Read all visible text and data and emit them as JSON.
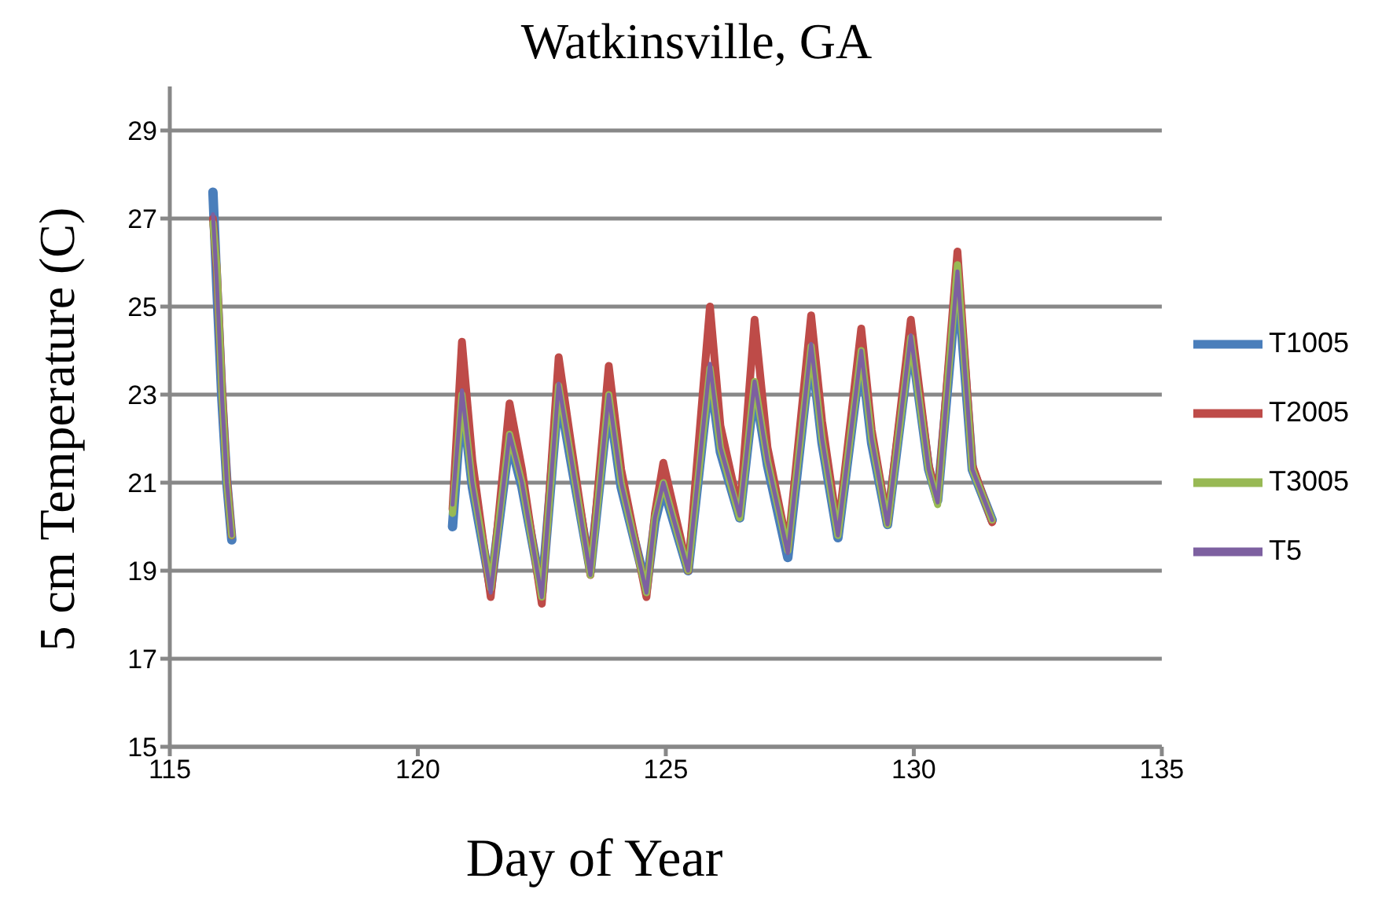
{
  "chart_data": {
    "type": "line",
    "title": "Watkinsville, GA",
    "xlabel": "Day of Year",
    "ylabel": "5 cm Temperature (C)",
    "x": [
      115.87,
      115.95,
      116.05,
      116.15,
      116.25,
      118,
      120.7,
      120.89,
      121.1,
      121.47,
      121.85,
      122.1,
      122.5,
      122.84,
      123.1,
      123.48,
      123.85,
      124.1,
      124.61,
      124.78,
      124.95,
      125.45,
      125.89,
      126.1,
      126.49,
      126.79,
      127.05,
      127.46,
      127.93,
      128.15,
      128.47,
      128.94,
      129.15,
      129.47,
      129.94,
      130.3,
      130.48,
      130.88,
      131.18,
      131.58
    ],
    "series": [
      {
        "name": "T1005",
        "color": "#4a7ebb",
        "values": [
          27.6,
          25.4,
          22.9,
          21,
          19.7,
          null,
          20.0,
          23.0,
          20.9,
          18.6,
          22.0,
          20.9,
          18.5,
          23.1,
          21.4,
          19.0,
          22.9,
          20.9,
          18.6,
          20.1,
          20.9,
          19.0,
          23.5,
          21.7,
          20.2,
          23.2,
          21.4,
          19.3,
          24.1,
          21.9,
          19.75,
          23.95,
          21.9,
          20.05,
          24.3,
          21.3,
          20.6,
          25.7,
          21.3,
          20.15
        ]
      },
      {
        "name": "T2005",
        "color": "#be4b48",
        "values": [
          27.0,
          25.8,
          23.2,
          21.1,
          19.8,
          null,
          20.4,
          24.2,
          21.5,
          18.4,
          22.8,
          21.3,
          18.25,
          23.85,
          21.8,
          18.9,
          23.65,
          21.3,
          18.4,
          20.3,
          21.45,
          19.0,
          25.0,
          22.3,
          20.3,
          24.7,
          21.8,
          19.5,
          24.8,
          22.4,
          19.9,
          24.5,
          22.2,
          20.1,
          24.7,
          21.4,
          20.6,
          26.25,
          21.4,
          20.1
        ]
      },
      {
        "name": "T3005",
        "color": "#98b954",
        "values": [
          26.9,
          25.9,
          23.1,
          21,
          19.8,
          null,
          20.3,
          23.0,
          21,
          18.6,
          22.1,
          21,
          18.4,
          23.2,
          21.5,
          18.9,
          23,
          21,
          18.5,
          20.2,
          21,
          19,
          23.6,
          21.8,
          20.2,
          23.3,
          21.5,
          19.45,
          24.1,
          22,
          19.8,
          24,
          22,
          20.05,
          24.3,
          21.3,
          20.5,
          25.95,
          21.3,
          20.15
        ]
      },
      {
        "name": "T5",
        "color": "#7d60a0",
        "values": [
          27.1,
          25.5,
          23,
          21,
          19.8,
          null,
          20.5,
          23.1,
          21,
          18.5,
          22.1,
          21,
          18.4,
          23.25,
          21.5,
          18.9,
          23,
          21,
          18.5,
          20.2,
          21,
          19,
          23.7,
          21.8,
          20.25,
          23.3,
          21.5,
          19.4,
          24.15,
          22,
          19.8,
          24,
          22,
          20.05,
          24.35,
          21.3,
          20.55,
          25.8,
          21.3,
          20.15
        ]
      }
    ],
    "xlim": [
      115,
      135
    ],
    "xticks": [
      115,
      120,
      125,
      130,
      135
    ],
    "ylim": [
      15,
      30
    ],
    "yticks": [
      15,
      17,
      19,
      21,
      23,
      25,
      27,
      29
    ],
    "grid": "y",
    "legend": "right",
    "marker": "none",
    "line_style": "solid"
  }
}
